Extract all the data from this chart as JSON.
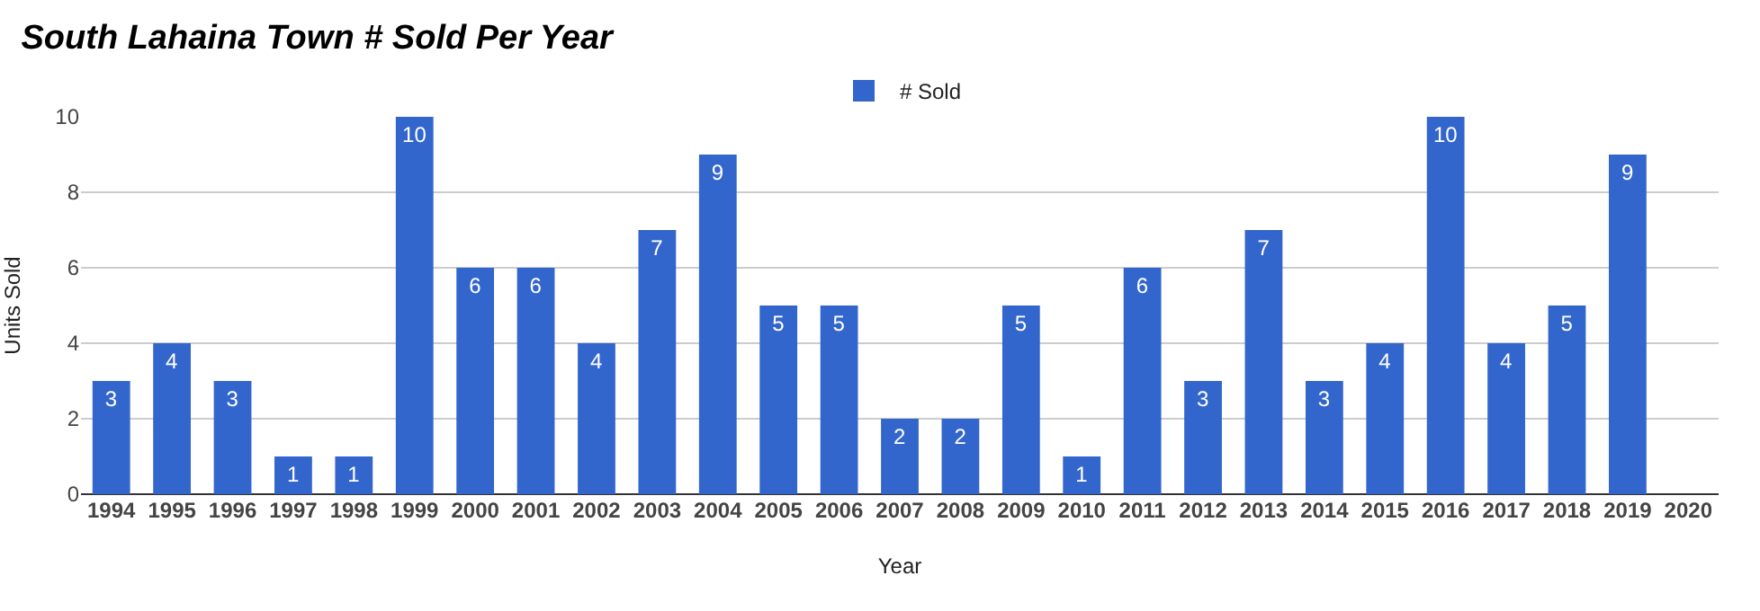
{
  "chart_data": {
    "type": "bar",
    "title": "South Lahaina Town # Sold Per Year",
    "xlabel": "Year",
    "ylabel": "Units Sold",
    "categories": [
      "1994",
      "1995",
      "1996",
      "1997",
      "1998",
      "1999",
      "2000",
      "2001",
      "2002",
      "2003",
      "2004",
      "2005",
      "2006",
      "2007",
      "2008",
      "2009",
      "2010",
      "2011",
      "2012",
      "2013",
      "2014",
      "2015",
      "2016",
      "2017",
      "2018",
      "2019",
      "2020"
    ],
    "series": [
      {
        "name": "# Sold",
        "color": "#3366cc",
        "values": [
          3,
          4,
          3,
          1,
          1,
          10,
          6,
          6,
          4,
          7,
          9,
          5,
          5,
          2,
          2,
          5,
          1,
          6,
          3,
          7,
          3,
          4,
          10,
          4,
          5,
          9,
          null
        ]
      }
    ],
    "ylim": [
      0,
      10
    ],
    "yticks": [
      0,
      2,
      4,
      6,
      8,
      10
    ],
    "grid": "y",
    "legend": "top",
    "data_labels": true
  }
}
